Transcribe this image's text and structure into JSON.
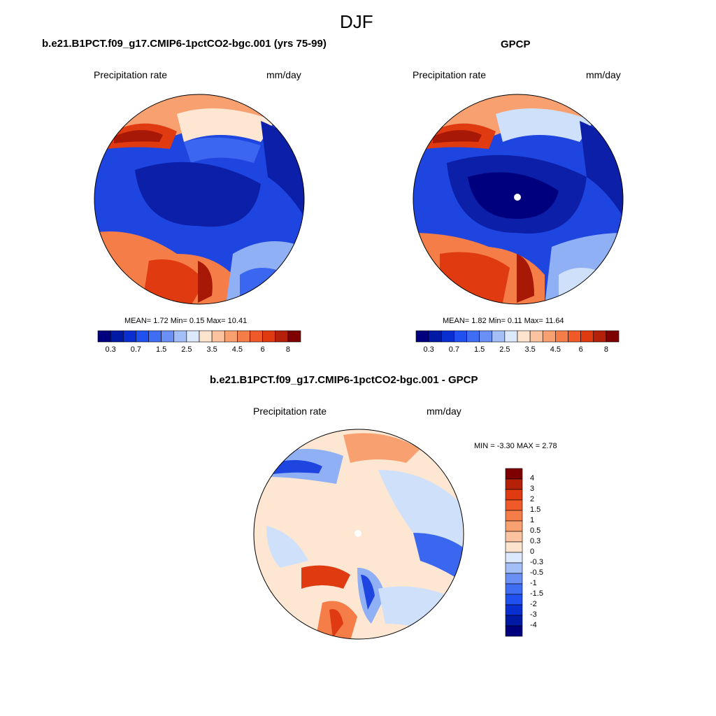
{
  "figure": {
    "season": "DJF",
    "variable": "Precipitation rate",
    "units": "mm/day"
  },
  "panels": {
    "model": {
      "title": "b.e21.B1PCT.f09_g17.CMIP6-1pctCO2-bgc.001 (yrs 75-99)",
      "stats": "MEAN=   1.72  Min=   0.15  Max=  10.41",
      "stats_values": {
        "mean": 1.72,
        "min": 0.15,
        "max": 10.41
      }
    },
    "obs": {
      "title": "GPCP",
      "stats": "MEAN=   1.82  Min=   0.11  Max=  11.64",
      "stats_values": {
        "mean": 1.82,
        "min": 0.11,
        "max": 11.64
      }
    },
    "diff": {
      "title": "b.e21.B1PCT.f09_g17.CMIP6-1pctCO2-bgc.001 - GPCP",
      "stats": "MIN =  -3.30 MAX =   2.78",
      "stats_values": {
        "min": -3.3,
        "max": 2.78
      }
    }
  },
  "colorbars": {
    "abs": {
      "labels": [
        "0.3",
        "0.7",
        "1.5",
        "2.5",
        "3.5",
        "4.5",
        "6",
        "8"
      ],
      "colors": [
        "#00007f",
        "#001aa5",
        "#0a2fd0",
        "#2050f0",
        "#3f6ef5",
        "#6a90f5",
        "#a4bef7",
        "#dce8fb",
        "#fde4cf",
        "#fbc3a0",
        "#f8a070",
        "#f57d48",
        "#f05a28",
        "#e03a10",
        "#b52008",
        "#7f0000"
      ]
    },
    "diff": {
      "labels": [
        "4",
        "3",
        "2",
        "1.5",
        "1",
        "0.5",
        "0.3",
        "0",
        "-0.3",
        "-0.5",
        "-1",
        "-1.5",
        "-2",
        "-3",
        "-4"
      ],
      "colors": [
        "#7f0000",
        "#b52008",
        "#e03a10",
        "#f05a28",
        "#f57d48",
        "#f8a070",
        "#fbc3a0",
        "#fde4cf",
        "#dce8fb",
        "#a4bef7",
        "#6a90f5",
        "#3f6ef5",
        "#2050f0",
        "#0a2fd0",
        "#001aa5",
        "#00007f"
      ]
    }
  },
  "field_colors": {
    "deep_blue": "#0b1fa8",
    "blue": "#1f45e0",
    "mid_blue": "#3a66f0",
    "light_blue": "#8fb0f5",
    "pale_blue": "#cfe0fb",
    "cream": "#fde6d2",
    "orange": "#f57d48",
    "red": "#e03a10",
    "dark_red": "#a81806"
  }
}
